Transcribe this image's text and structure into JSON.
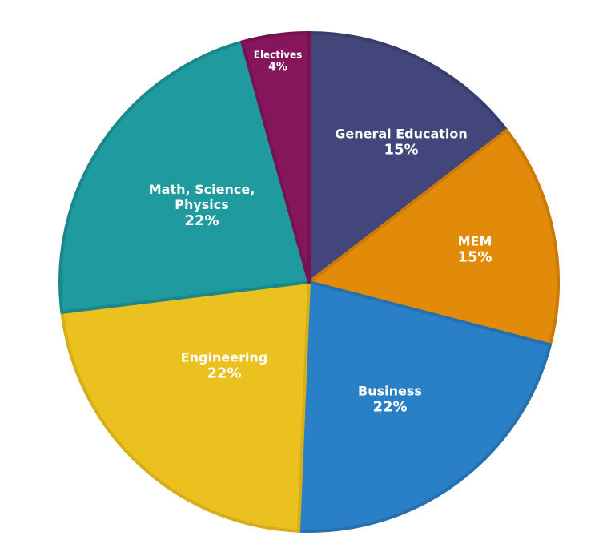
{
  "chart_data": {
    "type": "pie",
    "title": "",
    "center": [
      386,
      352
    ],
    "radius": 311,
    "slices": [
      {
        "label": "General Education",
        "value": 15,
        "display": "15%",
        "color": "#43467a",
        "border": "#3a3d6b",
        "start": 0,
        "end": 52.5
      },
      {
        "label": "MEM",
        "value": 15,
        "display": "15%",
        "color": "#e28a0a",
        "border": "#c97a08",
        "start": 52.5,
        "end": 104.6
      },
      {
        "label": "Business",
        "value": 22,
        "display": "22%",
        "color": "#2a80c6",
        "border": "#2571b0",
        "start": 104.6,
        "end": 182.4
      },
      {
        "label": "Engineering",
        "value": 22,
        "display": "22%",
        "color": "#ebc11f",
        "border": "#d6ae19",
        "start": 182.4,
        "end": 263.0
      },
      {
        "label": "Math, Science, Physics",
        "value": 22,
        "display": "22%",
        "color": "#1f9a9e",
        "border": "#1a878b",
        "start": 263.0,
        "end": 344.4
      },
      {
        "label": "Electives",
        "value": 4,
        "display": "4%",
        "color": "#86165b",
        "border": "#751350",
        "start": 344.4,
        "end": 360
      }
    ],
    "legend": null
  },
  "labels": {
    "gen_ed": {
      "line1": "General Education",
      "pct": "15%"
    },
    "mem": {
      "line1": "MEM",
      "pct": "15%"
    },
    "business": {
      "line1": "Business",
      "pct": "22%"
    },
    "engineering": {
      "line1": "Engineering",
      "pct": "22%"
    },
    "math": {
      "line1": "Math, Science,",
      "line2": "Physics",
      "pct": "22%"
    },
    "electives": {
      "line1": "Electives",
      "pct": "4%"
    }
  }
}
